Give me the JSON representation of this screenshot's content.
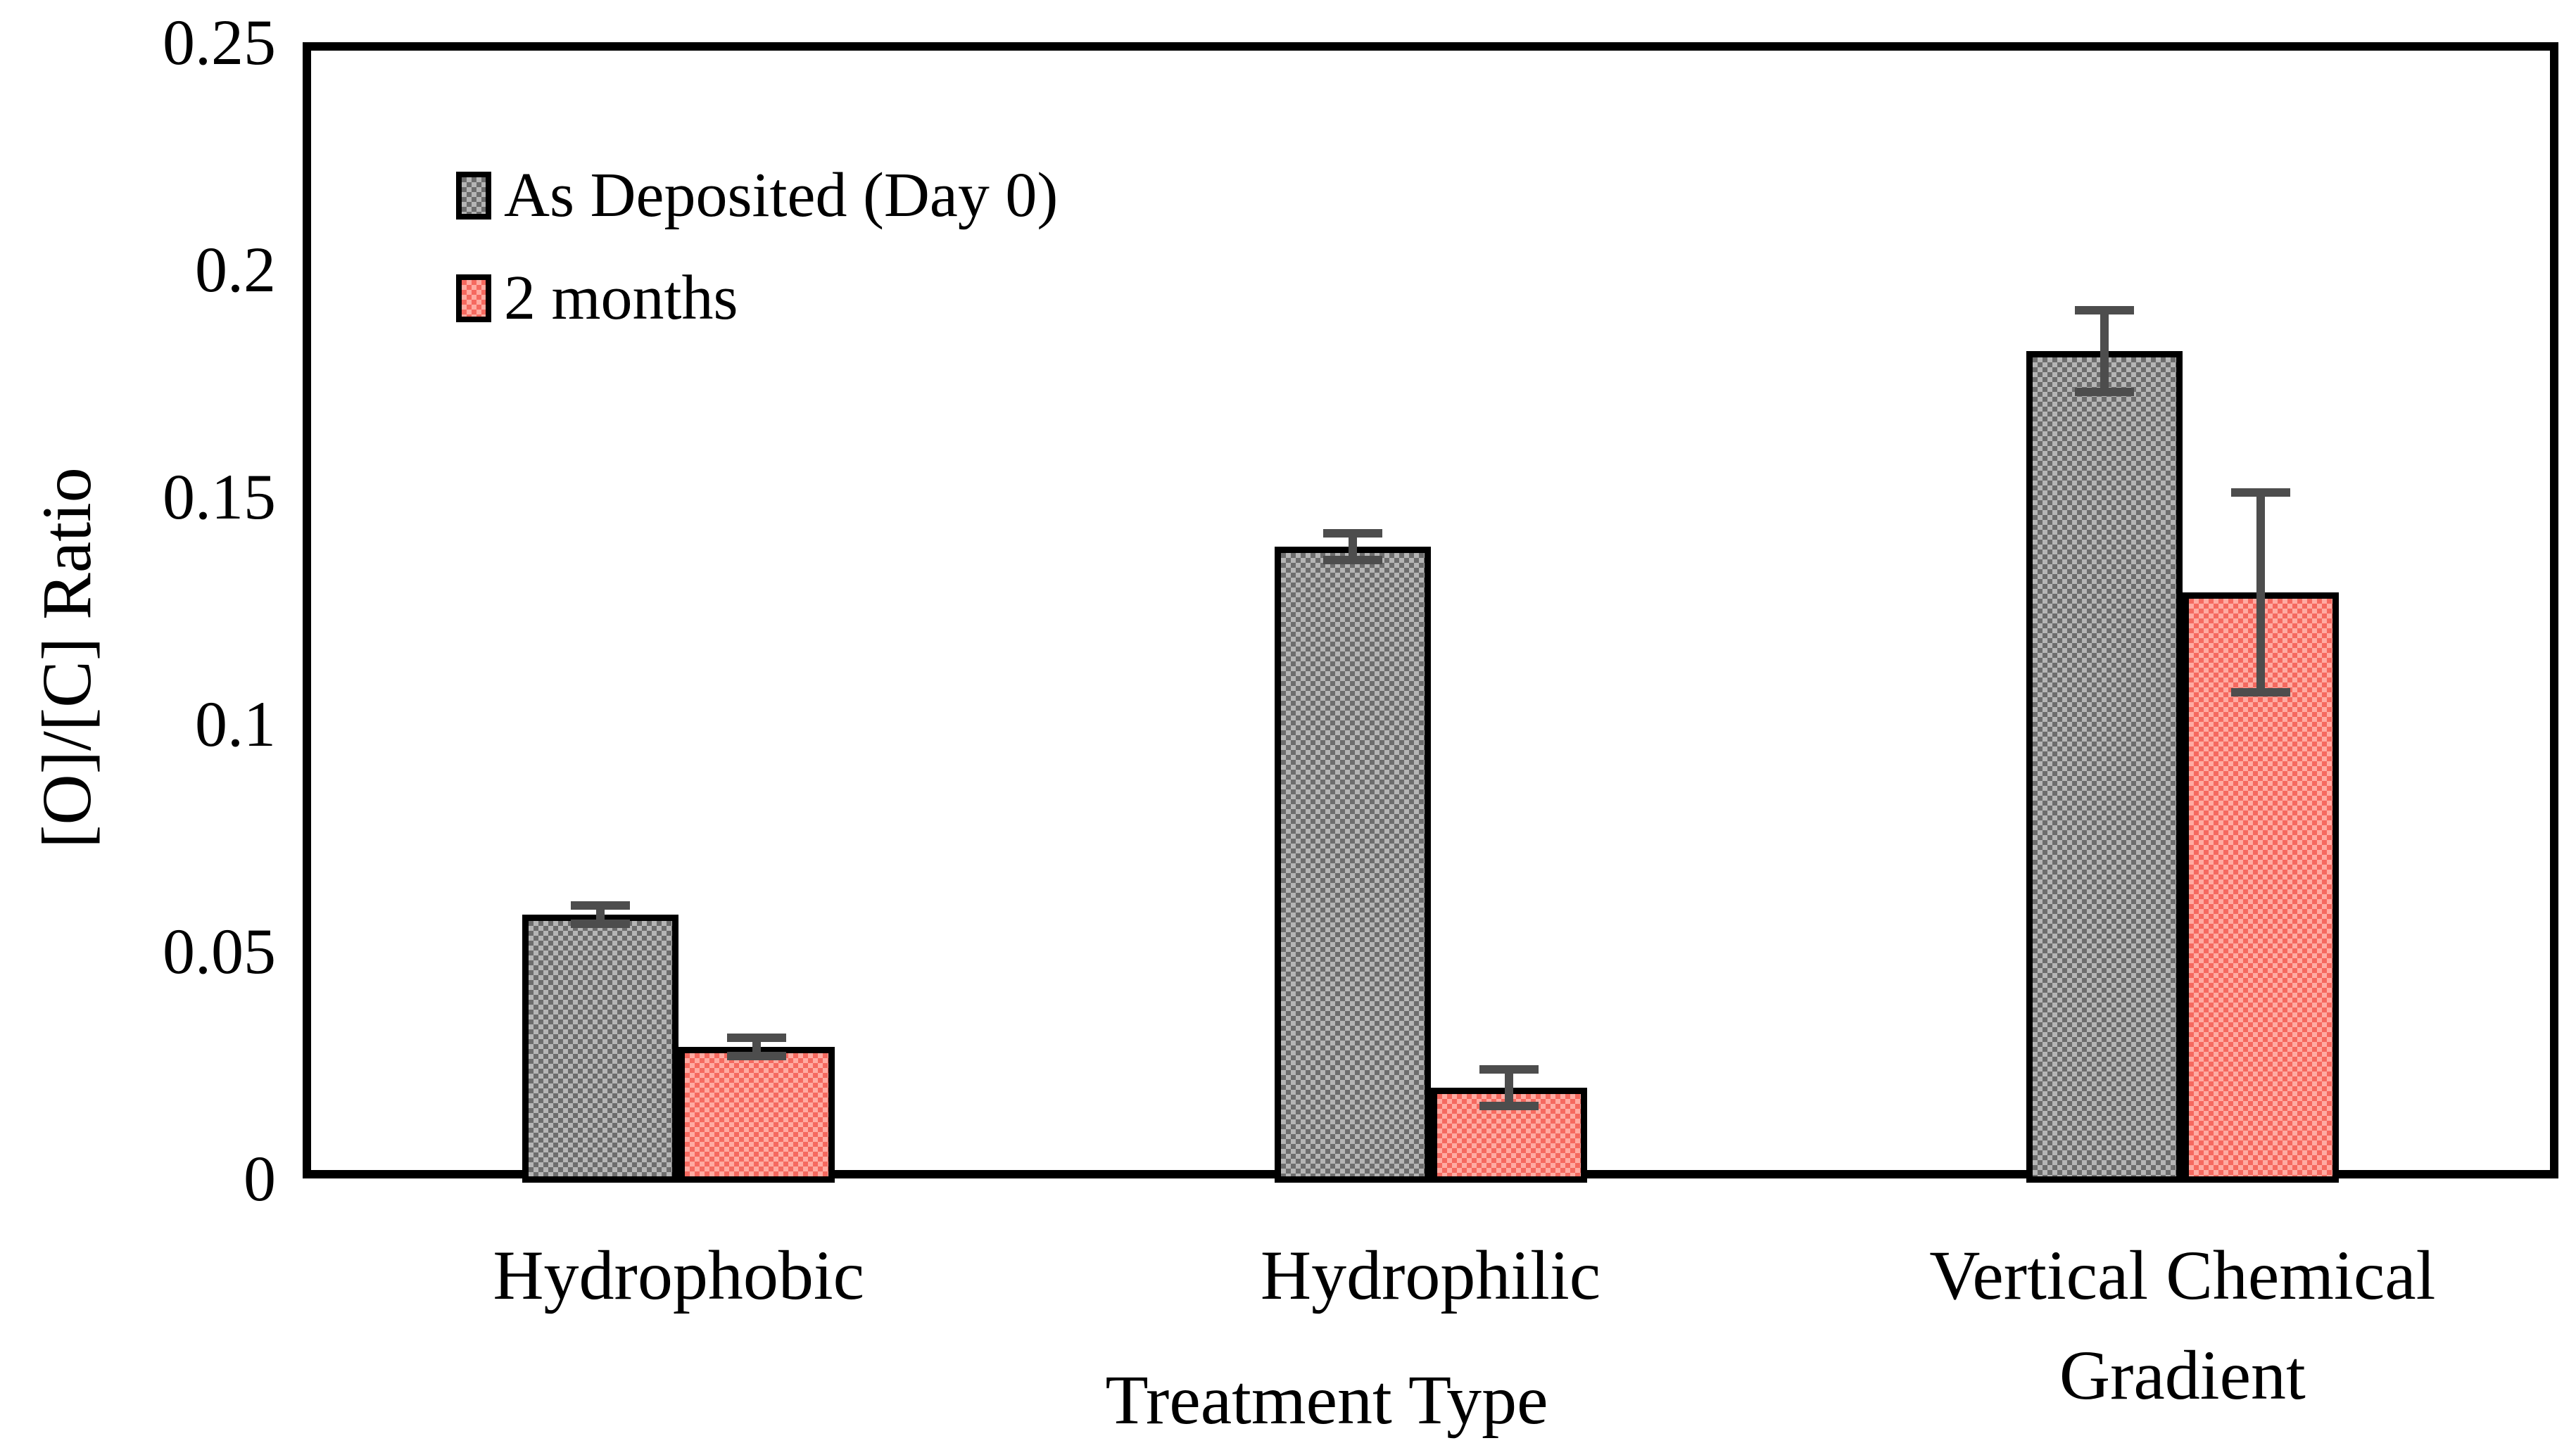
{
  "chart_data": {
    "type": "bar",
    "title": "",
    "xlabel": "Treatment Type",
    "ylabel": "[O]/[C] Ratio",
    "categories": [
      "Hydrophobic",
      "Hydrophilic",
      "Vertical Chemical Gradient"
    ],
    "series": [
      {
        "name": "As Deposited (Day 0)",
        "values": [
          0.058,
          0.139,
          0.182
        ],
        "errors": [
          0.002,
          0.003,
          0.009
        ],
        "fill_light": "#b5b5b5",
        "fill_dark": "#6d6d6d"
      },
      {
        "name": "2 months",
        "values": [
          0.029,
          0.02,
          0.129
        ],
        "errors": [
          0.002,
          0.004,
          0.022
        ],
        "fill_light": "#ffaba2",
        "fill_dark": "#f5695f"
      }
    ],
    "ylim": [
      0,
      0.25
    ],
    "ytick_values": [
      0,
      0.05,
      0.1,
      0.15,
      0.2,
      0.25
    ],
    "ytick_labels": [
      "0",
      "0.05",
      "0.1",
      "0.15",
      "0.2",
      "0.25"
    ],
    "grid": false,
    "legend_position": "upper-left-inside",
    "bar_border_color": "#000000",
    "error_bar_color": "#4d4d4d",
    "pattern": "checkerboard"
  }
}
